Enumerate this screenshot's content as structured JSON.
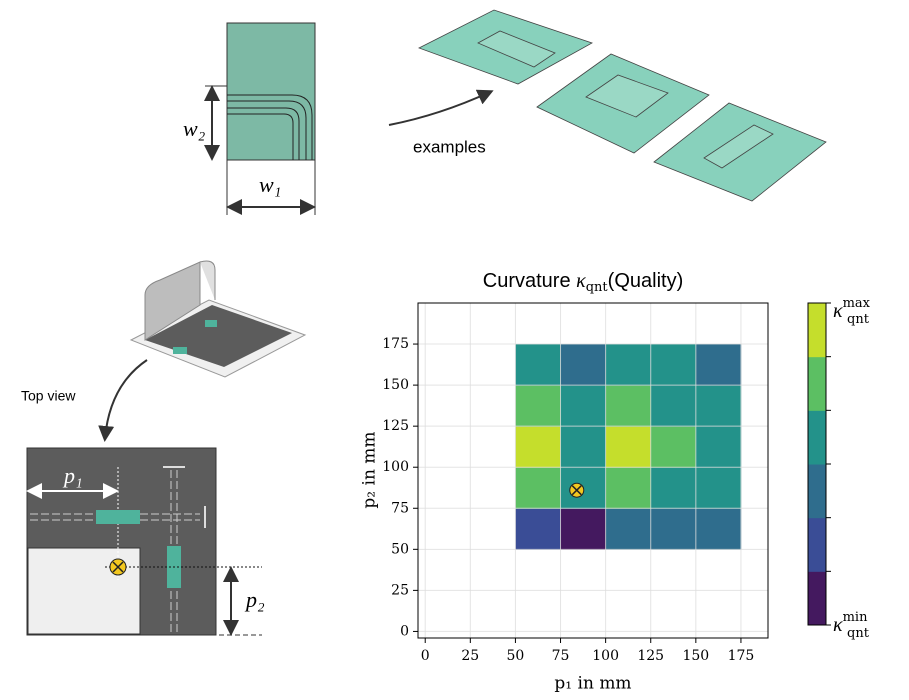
{
  "diagram": {
    "w2": "w₂",
    "w1": "w₁",
    "examples": "examples",
    "top_view": "Top view",
    "p1": "p₁",
    "p2": "p₂"
  },
  "chart_data": {
    "type": "contour",
    "title": "Curvature",
    "title_symbol": "κ",
    "title_sub": "qnt",
    "title_suffix": "(Quality)",
    "xlabel": "p₁ in mm",
    "ylabel": "p₂ in mm",
    "xlim": [
      -4,
      190
    ],
    "ylim": [
      -4,
      200
    ],
    "xticks": [
      0,
      25,
      50,
      75,
      100,
      125,
      150,
      175
    ],
    "yticks": [
      0,
      25,
      50,
      75,
      100,
      125,
      150,
      175
    ],
    "grid": true,
    "x": [
      50,
      75,
      100,
      125,
      150,
      175
    ],
    "y": [
      50,
      75,
      100,
      125,
      150,
      175
    ],
    "z": [
      [
        1,
        0,
        2,
        2,
        2
      ],
      [
        4,
        3,
        4,
        3,
        3
      ],
      [
        5,
        3,
        5,
        4,
        3
      ],
      [
        4,
        3,
        4,
        3,
        3
      ],
      [
        3,
        2,
        3,
        3,
        2
      ]
    ],
    "levels": [
      "#44195f",
      "#3a4d96",
      "#2f6d8d",
      "#23928a",
      "#5cbf63",
      "#c5de2c"
    ],
    "marker": {
      "x": 84,
      "y": 86
    },
    "colorbar_max": {
      "symbol": "κ",
      "sub": "qnt",
      "sup": "max"
    },
    "colorbar_min": {
      "symbol": "κ",
      "sub": "qnt",
      "sup": "min"
    }
  }
}
